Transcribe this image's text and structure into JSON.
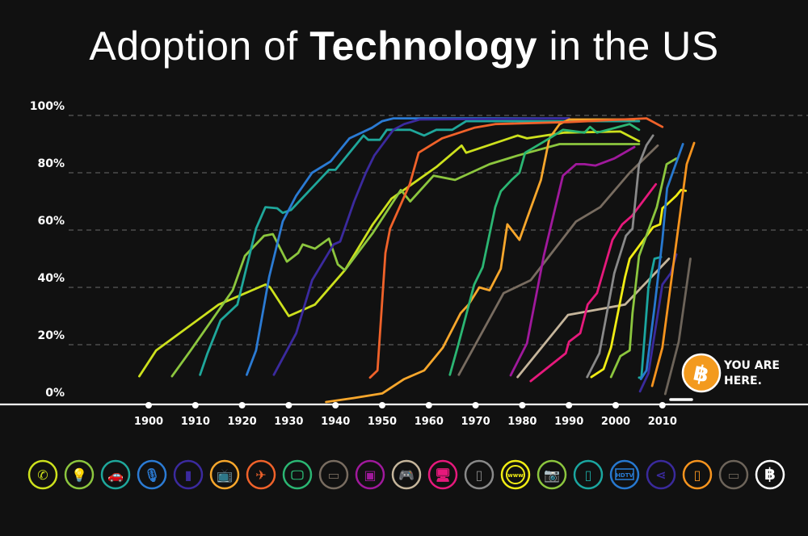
{
  "title": {
    "part1": "Adoption of ",
    "bold": "Technology",
    "part2": " in the US"
  },
  "annotation": {
    "line1": "YOU ARE",
    "line2": "HERE.",
    "badge_color": "#f39a1e",
    "icon": "bitcoin-icon"
  },
  "chart_data": {
    "type": "line",
    "title": "Adoption of Technology in the US",
    "xlabel": "",
    "ylabel": "",
    "xlim": [
      1883,
      2033
    ],
    "ylim": [
      0,
      100
    ],
    "x_ticks": [
      1900,
      1910,
      1920,
      1930,
      1940,
      1950,
      1960,
      1970,
      1980,
      1990,
      2000,
      2010
    ],
    "y_ticks": [
      0,
      20,
      40,
      60,
      80,
      100
    ],
    "y_tick_labels": [
      "0%",
      "20%",
      "40%",
      "60%",
      "80%",
      "100%"
    ],
    "grid": "horizontal dashed",
    "legend": "bottom (icons only)",
    "series": [
      {
        "icon": "telephone-icon",
        "color": "#cde11d",
        "points": [
          [
            1898,
            9
          ],
          [
            1901.6,
            18
          ],
          [
            1915,
            34
          ],
          [
            1925,
            41
          ],
          [
            1926,
            40
          ],
          [
            1930,
            30
          ],
          [
            1935.6,
            34
          ],
          [
            1942,
            46
          ],
          [
            1948,
            62
          ],
          [
            1952,
            71
          ],
          [
            1961.6,
            82
          ],
          [
            1967,
            89.5
          ],
          [
            1968,
            87
          ],
          [
            1979,
            93
          ],
          [
            1981,
            92
          ],
          [
            1989,
            94
          ],
          [
            2001,
            94.4
          ],
          [
            2005,
            91
          ]
        ]
      },
      {
        "icon": "lightbulb-icon",
        "color": "#8cc63e",
        "points": [
          [
            1905,
            9
          ],
          [
            1909,
            18
          ],
          [
            1918,
            39
          ],
          [
            1920.6,
            51
          ],
          [
            1924.7,
            58
          ],
          [
            1926.6,
            58.6
          ],
          [
            1929.6,
            49
          ],
          [
            1932,
            52
          ],
          [
            1933,
            55
          ],
          [
            1935.6,
            53.5
          ],
          [
            1938.6,
            57
          ],
          [
            1940.5,
            48
          ],
          [
            1942,
            46
          ],
          [
            1948,
            59
          ],
          [
            1954,
            74
          ],
          [
            1956,
            70
          ],
          [
            1961,
            79
          ],
          [
            1965.6,
            77.5
          ],
          [
            1973,
            83
          ],
          [
            1979,
            86
          ],
          [
            1988,
            90
          ],
          [
            2002,
            90
          ],
          [
            2005,
            90
          ]
        ]
      },
      {
        "icon": "car-icon",
        "color": "#1fa79b",
        "points": [
          [
            1911,
            9.5
          ],
          [
            1912.6,
            17
          ],
          [
            1915.4,
            28.5
          ],
          [
            1919,
            34
          ],
          [
            1923,
            60.5
          ],
          [
            1925,
            68
          ],
          [
            1927.5,
            67.6
          ],
          [
            1928.7,
            66
          ],
          [
            1930.5,
            67
          ],
          [
            1938.6,
            81
          ],
          [
            1940,
            81
          ],
          [
            1946,
            93
          ],
          [
            1947,
            91.5
          ],
          [
            1949.5,
            91.5
          ],
          [
            1951,
            95
          ],
          [
            1956,
            95
          ],
          [
            1959,
            93
          ],
          [
            1961.6,
            95
          ],
          [
            1965,
            95
          ],
          [
            1968,
            98
          ],
          [
            2005,
            98
          ]
        ]
      },
      {
        "icon": "microphone-icon",
        "color": "#2b7bd4",
        "points": [
          [
            1921,
            9.5
          ],
          [
            1923,
            18
          ],
          [
            1925.8,
            43.6
          ],
          [
            1928.7,
            63
          ],
          [
            1931.6,
            72
          ],
          [
            1935,
            80
          ],
          [
            1939,
            84
          ],
          [
            1943,
            92
          ],
          [
            1947.8,
            95.7
          ],
          [
            1950,
            98
          ],
          [
            1952.4,
            99
          ],
          [
            1990,
            99
          ]
        ]
      },
      {
        "icon": "refrigerator-icon",
        "color": "#3b2a9e",
        "points": [
          [
            1926.8,
            9.5
          ],
          [
            1931.6,
            24
          ],
          [
            1935,
            42.5
          ],
          [
            1939.6,
            55
          ],
          [
            1941,
            56
          ],
          [
            1944,
            70
          ],
          [
            1946.5,
            80
          ],
          [
            1948.3,
            86
          ],
          [
            1952.4,
            95
          ],
          [
            1954.7,
            97
          ],
          [
            1958,
            98.6
          ],
          [
            1990,
            99
          ]
        ]
      },
      {
        "icon": "television-icon",
        "color": "#f8a72c",
        "points": [
          [
            1938,
            0
          ],
          [
            1944,
            1.4
          ],
          [
            1950,
            3
          ],
          [
            1954.7,
            8
          ],
          [
            1959,
            11
          ],
          [
            1963,
            19
          ],
          [
            1966.8,
            31
          ],
          [
            1968.5,
            34
          ],
          [
            1970.8,
            40
          ],
          [
            1973,
            39
          ],
          [
            1975.4,
            46.5
          ],
          [
            1976.8,
            62
          ],
          [
            1979.4,
            56.6
          ],
          [
            1981,
            64
          ],
          [
            1984,
            77.5
          ],
          [
            1985.8,
            92
          ],
          [
            1988,
            97
          ],
          [
            1990,
            98.6
          ],
          [
            2004,
            98.6
          ]
        ]
      },
      {
        "icon": "airplane-icon",
        "color": "#f0622a",
        "points": [
          [
            1947.4,
            8.5
          ],
          [
            1949,
            11
          ],
          [
            1950.7,
            52
          ],
          [
            1951.7,
            60.5
          ],
          [
            1955.9,
            76
          ],
          [
            1957.8,
            87
          ],
          [
            1962.8,
            92
          ],
          [
            1969.7,
            95.7
          ],
          [
            1974.2,
            97
          ],
          [
            1990,
            97.7
          ],
          [
            2006.6,
            99
          ],
          [
            2010,
            96
          ]
        ]
      },
      {
        "icon": "monitor-icon",
        "color": "#2bb673",
        "points": [
          [
            1964.5,
            9.5
          ],
          [
            1966.3,
            20
          ],
          [
            1969.7,
            41
          ],
          [
            1971.5,
            47
          ],
          [
            1974.2,
            68
          ],
          [
            1975.4,
            73.5
          ],
          [
            1977.7,
            77.5
          ],
          [
            1979.4,
            80
          ],
          [
            1980.6,
            87
          ],
          [
            1982.4,
            88.7
          ],
          [
            1985.8,
            92
          ],
          [
            1988.7,
            95
          ],
          [
            1993.3,
            94
          ],
          [
            1994.5,
            96
          ],
          [
            1996,
            94
          ],
          [
            2002,
            96.6
          ],
          [
            2003,
            97
          ],
          [
            2005,
            95
          ]
        ]
      },
      {
        "icon": "credit-card-icon",
        "color": "#786c60",
        "points": [
          [
            1966.4,
            9.5
          ],
          [
            1976,
            38
          ],
          [
            1981.8,
            42.5
          ],
          [
            1991.5,
            63
          ],
          [
            1996.7,
            68
          ],
          [
            2003,
            80
          ],
          [
            2009,
            89.5
          ]
        ]
      },
      {
        "icon": "microwave-icon",
        "color": "#a0199c",
        "points": [
          [
            1977.5,
            9.3
          ],
          [
            1981,
            20.5
          ],
          [
            1984.6,
            51
          ],
          [
            1988.7,
            79
          ],
          [
            1991.5,
            83
          ],
          [
            1993.3,
            83
          ],
          [
            1995.7,
            82.5
          ],
          [
            1999.7,
            85
          ],
          [
            2004,
            89
          ]
        ]
      },
      {
        "icon": "game-controller-icon",
        "color": "#c5b59b",
        "points": [
          [
            1979,
            8.7
          ],
          [
            1989.8,
            30.4
          ],
          [
            2002,
            34
          ],
          [
            2011.4,
            50
          ]
        ]
      },
      {
        "icon": "desktop-computer-icon",
        "color": "#e6197c",
        "points": [
          [
            1981.8,
            7.3
          ],
          [
            1989.3,
            17
          ],
          [
            1990,
            21
          ],
          [
            1992.4,
            24
          ],
          [
            1994,
            34
          ],
          [
            1996,
            38
          ],
          [
            1999.3,
            56.6
          ],
          [
            2001.4,
            62
          ],
          [
            2003.5,
            65
          ],
          [
            2008.6,
            76
          ]
        ]
      },
      {
        "icon": "cell-phone-icon",
        "color": "#898989",
        "points": [
          [
            1993.9,
            8.7
          ],
          [
            1996.5,
            17
          ],
          [
            1999.7,
            45
          ],
          [
            2002.2,
            58
          ],
          [
            2003.6,
            60.5
          ],
          [
            2005,
            83
          ],
          [
            2006.6,
            89.6
          ],
          [
            2008,
            93
          ]
        ]
      },
      {
        "icon": "www-icon",
        "color": "#f0ec14",
        "points": [
          [
            1994.8,
            8.7
          ],
          [
            1997.4,
            11.5
          ],
          [
            1999,
            19
          ],
          [
            2002,
            43.6
          ],
          [
            2003,
            50
          ],
          [
            2008,
            61
          ],
          [
            2009.5,
            62
          ],
          [
            2010,
            67.6
          ],
          [
            2011,
            69
          ],
          [
            2013,
            72
          ],
          [
            2014,
            74
          ],
          [
            2015,
            73.7
          ]
        ]
      },
      {
        "icon": "camera-icon",
        "color": "#8cc63e",
        "points": [
          [
            1999,
            8.7
          ],
          [
            2001,
            16
          ],
          [
            2003,
            18
          ],
          [
            2003.6,
            31
          ],
          [
            2005,
            51
          ],
          [
            2008.8,
            68
          ],
          [
            2010.9,
            83
          ],
          [
            2013,
            85
          ]
        ]
      },
      {
        "icon": "mp3-player-icon",
        "color": "#1ba6a0",
        "points": [
          [
            2005,
            8.5
          ],
          [
            2005.5,
            8.5
          ],
          [
            2007,
            40
          ],
          [
            2008.3,
            50
          ],
          [
            2009.7,
            50.6
          ]
        ]
      },
      {
        "icon": "hdtv-icon",
        "color": "#2778cf",
        "points": [
          [
            2005.4,
            8
          ],
          [
            2006.6,
            11
          ],
          [
            2008.3,
            33
          ],
          [
            2010,
            56.6
          ],
          [
            2011,
            74.6
          ],
          [
            2014.4,
            90
          ]
        ]
      },
      {
        "icon": "share-icon",
        "color": "#3a2a9c",
        "points": [
          [
            2005.2,
            3.7
          ],
          [
            2007,
            10
          ],
          [
            2010,
            41
          ],
          [
            2011.8,
            45
          ],
          [
            2013,
            51.5
          ]
        ]
      },
      {
        "icon": "smartphone-icon",
        "color": "#f7941e",
        "points": [
          [
            2007.8,
            5.6
          ],
          [
            2010,
            19
          ],
          [
            2015.2,
            83
          ],
          [
            2016.8,
            90.4
          ]
        ]
      },
      {
        "icon": "tablet-icon",
        "color": "#6d645a",
        "points": [
          [
            2010.6,
            2.8
          ],
          [
            2013.5,
            21
          ],
          [
            2016,
            50
          ]
        ]
      }
    ],
    "legend_icons": [
      {
        "icon": "telephone-icon",
        "color": "#cde11d"
      },
      {
        "icon": "lightbulb-icon",
        "color": "#8cc63e"
      },
      {
        "icon": "car-icon",
        "color": "#1fa79b"
      },
      {
        "icon": "microphone-icon",
        "color": "#2b7bd4"
      },
      {
        "icon": "refrigerator-icon",
        "color": "#3b2a9e"
      },
      {
        "icon": "television-icon",
        "color": "#f8a72c"
      },
      {
        "icon": "airplane-icon",
        "color": "#f0622a"
      },
      {
        "icon": "monitor-icon",
        "color": "#2bb673"
      },
      {
        "icon": "credit-card-icon",
        "color": "#786c60"
      },
      {
        "icon": "microwave-icon",
        "color": "#a0199c"
      },
      {
        "icon": "game-controller-icon",
        "color": "#c5b59b"
      },
      {
        "icon": "desktop-computer-icon",
        "color": "#e6197c"
      },
      {
        "icon": "cell-phone-icon",
        "color": "#898989"
      },
      {
        "icon": "www-icon",
        "color": "#f0ec14",
        "text": "www"
      },
      {
        "icon": "camera-icon",
        "color": "#8cc63e"
      },
      {
        "icon": "mp3-player-icon",
        "color": "#1ba6a0"
      },
      {
        "icon": "hdtv-icon",
        "color": "#2778cf",
        "text": "HDTV"
      },
      {
        "icon": "share-icon",
        "color": "#3a2a9c"
      },
      {
        "icon": "smartphone-icon",
        "color": "#f7941e"
      },
      {
        "icon": "tablet-icon",
        "color": "#6d645a"
      },
      {
        "icon": "bitcoin-icon",
        "color": "#ffffff"
      }
    ]
  }
}
